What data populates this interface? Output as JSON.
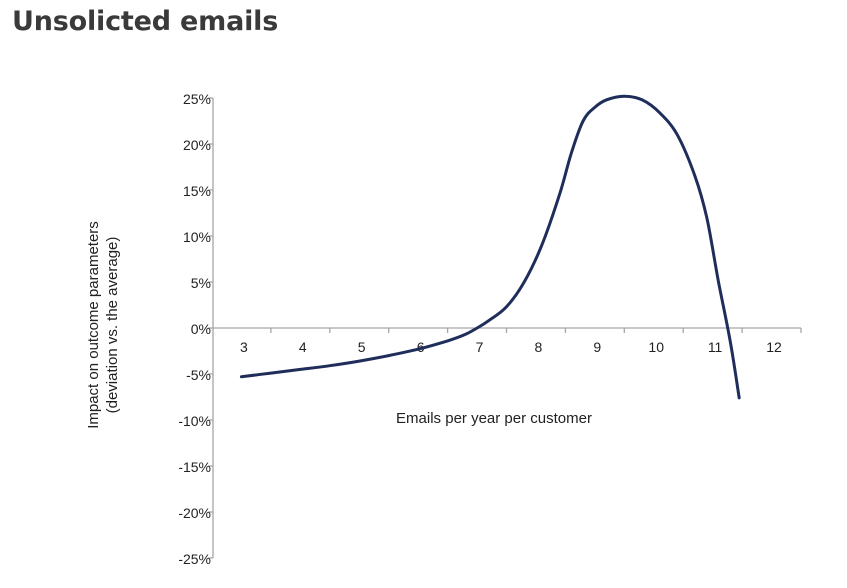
{
  "page": {
    "title": "Unsolicted emails"
  },
  "chart_data": {
    "type": "line",
    "title": "",
    "xlabel": "Emails per year per customer",
    "ylabel": "Impact on outcome parameters (deviation vs. the average)",
    "ylabel_lines": [
      "Impact on outcome parameters",
      "(deviation vs. the average)"
    ],
    "xlim": [
      2,
      12
    ],
    "ylim": [
      -25,
      25
    ],
    "x_ticks": [
      3,
      4,
      5,
      6,
      7,
      8,
      9,
      10,
      11,
      12
    ],
    "y_ticks": [
      25,
      20,
      15,
      10,
      5,
      0,
      -5,
      -10,
      -15,
      -20,
      -25
    ],
    "y_tick_labels": [
      "25%",
      "20%",
      "15%",
      "10%",
      "5%",
      "0%",
      "-5%",
      "-10%",
      "-15%",
      "-20%",
      "-25%"
    ],
    "grid": false,
    "legend": "none",
    "series": [
      {
        "color": "#1f2d5a",
        "points": [
          [
            2.5,
            -5.3
          ],
          [
            3.0,
            -4.9
          ],
          [
            3.5,
            -4.5
          ],
          [
            4.0,
            -4.1
          ],
          [
            4.5,
            -3.6
          ],
          [
            5.0,
            -3.0
          ],
          [
            5.5,
            -2.3
          ],
          [
            6.0,
            -1.4
          ],
          [
            6.3,
            -0.7
          ],
          [
            6.5,
            0.0
          ],
          [
            6.7,
            0.8
          ],
          [
            7.0,
            2.3
          ],
          [
            7.3,
            5.0
          ],
          [
            7.6,
            9.0
          ],
          [
            7.9,
            14.5
          ],
          [
            8.1,
            19.0
          ],
          [
            8.3,
            22.5
          ],
          [
            8.5,
            24.0
          ],
          [
            8.7,
            24.8
          ],
          [
            9.0,
            25.2
          ],
          [
            9.3,
            24.8
          ],
          [
            9.6,
            23.4
          ],
          [
            9.9,
            21.0
          ],
          [
            10.2,
            16.5
          ],
          [
            10.4,
            12.0
          ],
          [
            10.6,
            5.0
          ],
          [
            10.8,
            -1.5
          ],
          [
            10.95,
            -7.6
          ]
        ]
      }
    ]
  }
}
